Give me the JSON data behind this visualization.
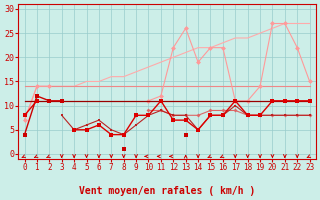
{
  "background_color": "#cceee8",
  "grid_color": "#99cccc",
  "x_labels": [
    0,
    1,
    2,
    3,
    4,
    5,
    6,
    7,
    8,
    9,
    10,
    11,
    12,
    13,
    14,
    15,
    16,
    17,
    18,
    19,
    20,
    21,
    22,
    23
  ],
  "xlabel": "Vent moyen/en rafales ( km/h )",
  "xlabel_color": "#cc0000",
  "xlabel_fontsize": 7,
  "ylabel_ticks": [
    0,
    5,
    10,
    15,
    20,
    25,
    30
  ],
  "ylim": [
    -1,
    31
  ],
  "xlim": [
    -0.5,
    23.5
  ],
  "series": [
    {
      "comment": "light pink diagonal rising line (gust upper bound)",
      "y": [
        7,
        14,
        14,
        14,
        14,
        15,
        15,
        16,
        16,
        17,
        18,
        19,
        20,
        21,
        22,
        22,
        23,
        24,
        24,
        25,
        26,
        27,
        27,
        27
      ],
      "color": "#ffaaaa",
      "marker": null,
      "markersize": 0,
      "linewidth": 0.8,
      "zorder": 2
    },
    {
      "comment": "light pink with diamonds - gust series",
      "y": [
        7,
        14,
        14,
        null,
        null,
        null,
        null,
        null,
        null,
        null,
        11,
        12,
        22,
        26,
        19,
        22,
        22,
        11,
        11,
        14,
        27,
        27,
        22,
        15
      ],
      "color": "#ff9999",
      "marker": "D",
      "markersize": 2.5,
      "linewidth": 0.8,
      "zorder": 3
    },
    {
      "comment": "medium red flat line around 14-15",
      "y": [
        14,
        14,
        14,
        14,
        14,
        14,
        14,
        14,
        14,
        14,
        14,
        14,
        14,
        14,
        14,
        14,
        14,
        14,
        14,
        14,
        14,
        14,
        14,
        14
      ],
      "color": "#ee8888",
      "marker": null,
      "markersize": 0,
      "linewidth": 0.8,
      "zorder": 2
    },
    {
      "comment": "medium pink series around 8 with small markers",
      "y": [
        null,
        null,
        null,
        null,
        null,
        null,
        null,
        null,
        null,
        null,
        9,
        9,
        8,
        8,
        8,
        9,
        9,
        9,
        8,
        8,
        8,
        8,
        8,
        8
      ],
      "color": "#dd6666",
      "marker": "D",
      "markersize": 2,
      "linewidth": 0.8,
      "zorder": 4
    },
    {
      "comment": "dark red series - wind speed with squares, starts ~11",
      "y": [
        11,
        11,
        11,
        11,
        11,
        11,
        11,
        11,
        11,
        11,
        11,
        11,
        11,
        11,
        11,
        11,
        11,
        11,
        11,
        11,
        11,
        11,
        11,
        11
      ],
      "color": "#990000",
      "marker": null,
      "markersize": 0,
      "linewidth": 0.9,
      "zorder": 3
    },
    {
      "comment": "dark red main series with square markers",
      "y": [
        4,
        12,
        11,
        11,
        null,
        null,
        null,
        null,
        1,
        null,
        null,
        11,
        null,
        4,
        null,
        null,
        null,
        null,
        null,
        null,
        null,
        null,
        null,
        null
      ],
      "color": "#cc0000",
      "marker": "s",
      "markersize": 2.5,
      "linewidth": 1.0,
      "zorder": 5
    },
    {
      "comment": "main red line with squares - constant around 11-12",
      "y": [
        8,
        11,
        null,
        null,
        5,
        5,
        6,
        4,
        4,
        8,
        8,
        11,
        7,
        7,
        5,
        8,
        8,
        11,
        8,
        8,
        11,
        11,
        11,
        11
      ],
      "color": "#dd0000",
      "marker": "s",
      "markersize": 2.5,
      "linewidth": 1.0,
      "zorder": 5
    },
    {
      "comment": "lower red oscillating series",
      "y": [
        null,
        null,
        null,
        8,
        5,
        6,
        7,
        5,
        4,
        6,
        8,
        9,
        8,
        8,
        5,
        8,
        8,
        10,
        8,
        8,
        8,
        8,
        8,
        8
      ],
      "color": "#bb2222",
      "marker": "s",
      "markersize": 2,
      "linewidth": 0.8,
      "zorder": 4
    }
  ],
  "wind_arrows": [
    {
      "x": 0,
      "sym": "arrow_dl"
    },
    {
      "x": 1,
      "sym": "arrow_dl"
    },
    {
      "x": 2,
      "sym": "arrow_dl"
    },
    {
      "x": 3,
      "sym": "arrow_d"
    },
    {
      "x": 4,
      "sym": "arrow_d"
    },
    {
      "x": 5,
      "sym": "arrow_d"
    },
    {
      "x": 6,
      "sym": "arrow_d"
    },
    {
      "x": 7,
      "sym": "arrow_d"
    },
    {
      "x": 8,
      "sym": "arrow_d"
    },
    {
      "x": 9,
      "sym": "arrow_d"
    },
    {
      "x": 10,
      "sym": "arrow_l"
    },
    {
      "x": 11,
      "sym": "arrow_l"
    },
    {
      "x": 12,
      "sym": "arrow_l"
    },
    {
      "x": 13,
      "sym": "arrow_u"
    },
    {
      "x": 14,
      "sym": "arrow_d"
    },
    {
      "x": 15,
      "sym": "arrow_dl"
    },
    {
      "x": 16,
      "sym": "arrow_dl"
    },
    {
      "x": 17,
      "sym": "arrow_d"
    },
    {
      "x": 18,
      "sym": "arrow_d"
    },
    {
      "x": 19,
      "sym": "arrow_d"
    },
    {
      "x": 20,
      "sym": "arrow_d"
    },
    {
      "x": 21,
      "sym": "arrow_d"
    },
    {
      "x": 22,
      "sym": "arrow_d"
    },
    {
      "x": 23,
      "sym": "arrow_dl"
    }
  ]
}
